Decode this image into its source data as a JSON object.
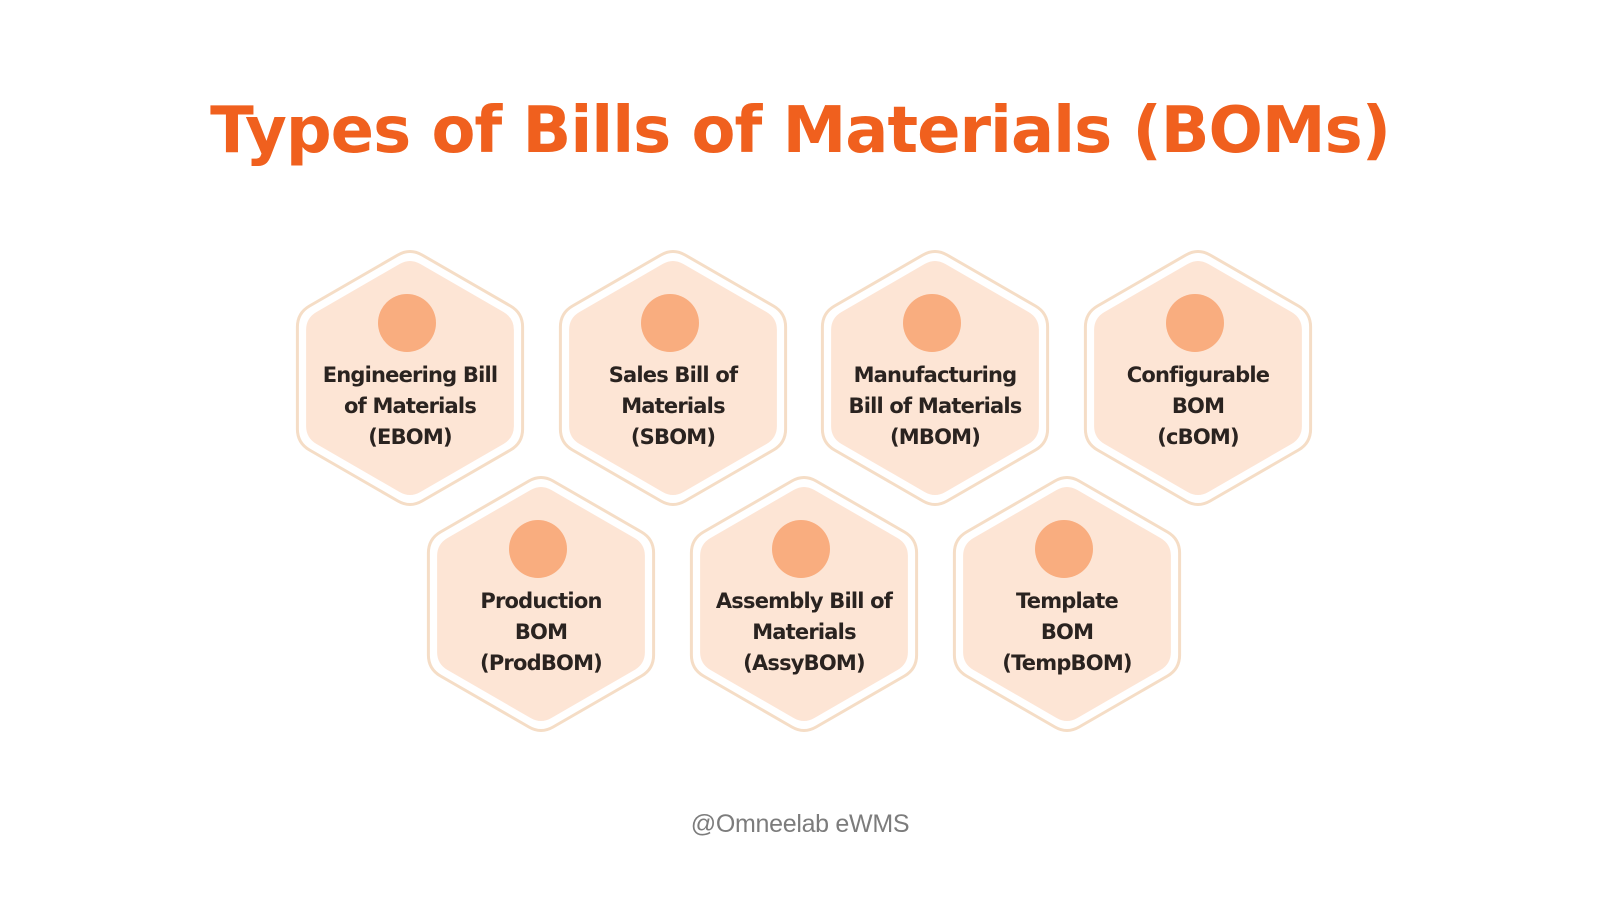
{
  "title": "Types of Bills of Materials (BOMs)",
  "footer": "@Omneelab eWMS",
  "colors": {
    "title": "#f0601e",
    "hex_fill": "#fde5d5",
    "hex_border": "#f5ddc6",
    "dot": "#f9ad7f",
    "label": "#2a2320",
    "footer": "#7c7c7c"
  },
  "hexagons": [
    {
      "lines": [
        "Engineering Bill",
        "of Materials",
        "(EBOM)"
      ]
    },
    {
      "lines": [
        "Sales Bill of",
        "Materials",
        "(SBOM)"
      ]
    },
    {
      "lines": [
        "Manufacturing",
        "Bill of Materials",
        "(MBOM)"
      ]
    },
    {
      "lines": [
        "Configurable",
        "BOM",
        "(cBOM)"
      ]
    },
    {
      "lines": [
        "Production",
        "BOM",
        "(ProdBOM)"
      ]
    },
    {
      "lines": [
        "Assembly Bill of",
        "Materials",
        "(AssyBOM)"
      ]
    },
    {
      "lines": [
        "Template",
        "BOM",
        "(TempBOM)"
      ]
    }
  ]
}
